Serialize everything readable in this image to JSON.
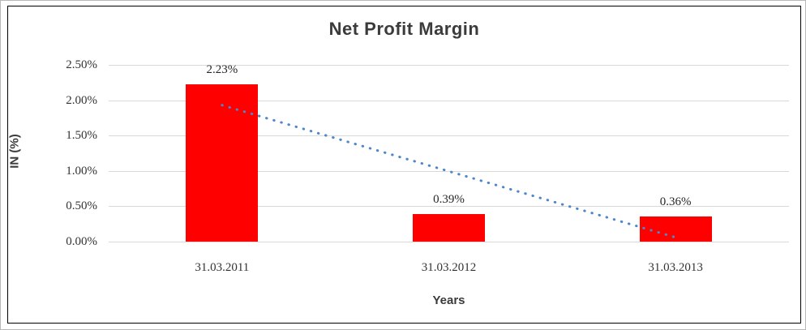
{
  "chart_data": {
    "type": "bar",
    "title": "Net Profit Margin",
    "xlabel": "Years",
    "ylabel": "IN (%)",
    "categories": [
      "31.03.2011",
      "31.03.2012",
      "31.03.2013"
    ],
    "series": [
      {
        "name": "Net Profit Margin",
        "values": [
          2.23,
          0.39,
          0.36
        ]
      }
    ],
    "data_labels": [
      "2.23%",
      "0.39%",
      "0.36%"
    ],
    "y_ticks": [
      {
        "value": 0.0,
        "label": "0.00%"
      },
      {
        "value": 0.5,
        "label": "0.50%"
      },
      {
        "value": 1.0,
        "label": "1.00%"
      },
      {
        "value": 1.5,
        "label": "1.50%"
      },
      {
        "value": 2.0,
        "label": "2.00%"
      },
      {
        "value": 2.5,
        "label": "2.50%"
      }
    ],
    "ylim": [
      0,
      2.5
    ],
    "grid": true,
    "legend": "none",
    "colors": {
      "bar": "#FF0000",
      "gridline": "#d9d9d9",
      "trendline": "#4E86C8",
      "text": "#333333",
      "title_text": "#3b3b3b"
    },
    "trendline": {
      "type": "linear",
      "style": "dotted",
      "start": {
        "category_index": 0,
        "value": 1.93
      },
      "end": {
        "category_index": 2,
        "value": 0.06
      }
    }
  }
}
